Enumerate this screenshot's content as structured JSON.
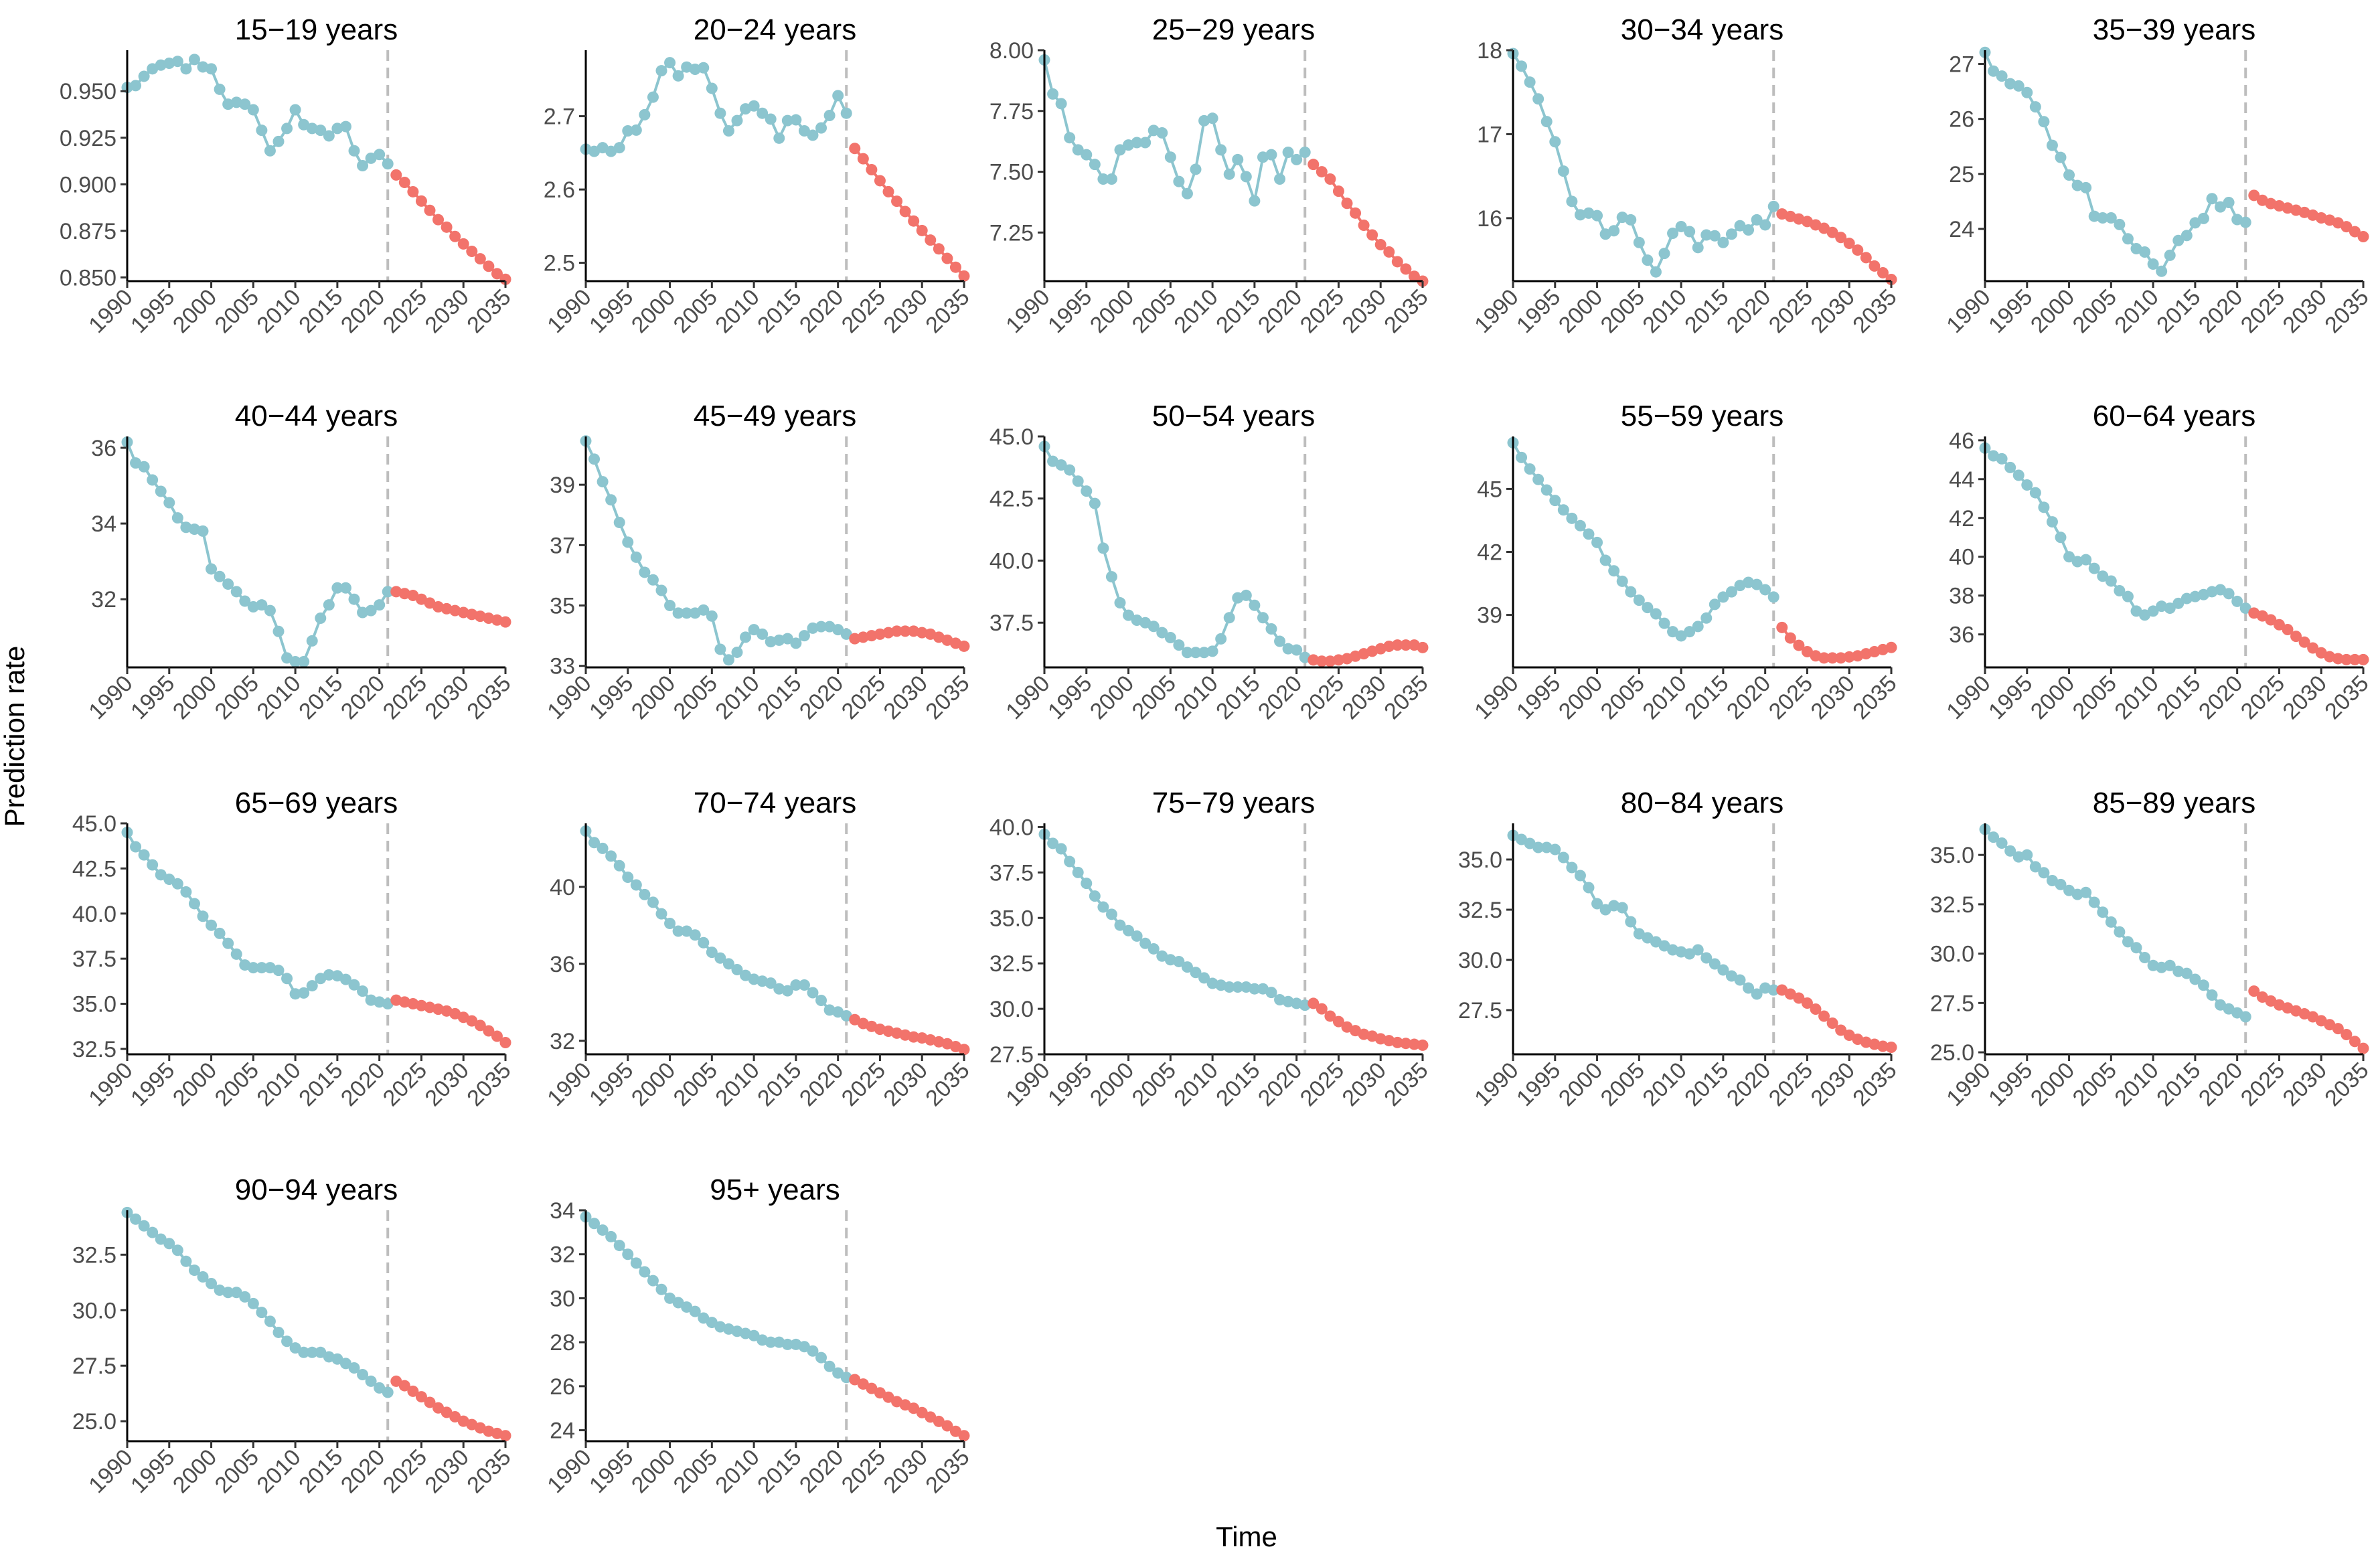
{
  "chart_data": {
    "type": "line",
    "title": "",
    "xlabel": "Time",
    "ylabel": "Prediction rate",
    "x_start": 1990,
    "x_end": 2035,
    "split_year": 2021,
    "xlim": [
      1990,
      2035
    ],
    "xticks": [
      1990,
      1995,
      2000,
      2005,
      2010,
      2015,
      2020,
      2025,
      2030,
      2035
    ],
    "colors": {
      "observed": "#8CC5CF",
      "predicted": "#F2736B",
      "reference_line": "#BDBDBD"
    },
    "legend": "none",
    "panels": [
      {
        "title": "15−19 years",
        "ylim": [
          0.848,
          0.972
        ],
        "yticks": [
          "0.850",
          "0.875",
          "0.900",
          "0.925",
          "0.950"
        ],
        "observed": [
          0.952,
          0.953,
          0.958,
          0.962,
          0.964,
          0.965,
          0.966,
          0.962,
          0.967,
          0.963,
          0.962,
          0.951,
          0.943,
          0.944,
          0.943,
          0.94,
          0.929,
          0.918,
          0.923,
          0.93,
          0.94,
          0.932,
          0.93,
          0.929,
          0.926,
          0.93,
          0.931,
          0.918,
          0.91,
          0.914,
          0.916,
          0.911
        ],
        "predicted": [
          0.905,
          0.901,
          0.896,
          0.891,
          0.886,
          0.881,
          0.877,
          0.872,
          0.868,
          0.864,
          0.86,
          0.856,
          0.852,
          0.849
        ]
      },
      {
        "title": "20−24 years",
        "ylim": [
          2.475,
          2.79
        ],
        "yticks": [
          "2.5",
          "2.6",
          "2.7"
        ],
        "observed": [
          2.655,
          2.652,
          2.657,
          2.652,
          2.657,
          2.68,
          2.681,
          2.702,
          2.726,
          2.762,
          2.773,
          2.755,
          2.767,
          2.764,
          2.766,
          2.738,
          2.704,
          2.68,
          2.694,
          2.71,
          2.714,
          2.704,
          2.696,
          2.67,
          2.694,
          2.695,
          2.68,
          2.674,
          2.684,
          2.701,
          2.728,
          2.704
        ],
        "predicted": [
          2.656,
          2.642,
          2.627,
          2.612,
          2.597,
          2.584,
          2.57,
          2.557,
          2.544,
          2.531,
          2.519,
          2.506,
          2.494,
          2.482
        ]
      },
      {
        "title": "25−29 years",
        "ylim": [
          7.05,
          8.0
        ],
        "yticks": [
          "7.25",
          "7.50",
          "7.75",
          "8.00"
        ],
        "observed": [
          7.96,
          7.82,
          7.78,
          7.64,
          7.59,
          7.57,
          7.53,
          7.47,
          7.47,
          7.59,
          7.61,
          7.62,
          7.62,
          7.67,
          7.66,
          7.56,
          7.46,
          7.41,
          7.51,
          7.71,
          7.72,
          7.59,
          7.49,
          7.55,
          7.48,
          7.38,
          7.56,
          7.57,
          7.47,
          7.58,
          7.55,
          7.58
        ],
        "predicted": [
          7.53,
          7.5,
          7.47,
          7.42,
          7.37,
          7.33,
          7.28,
          7.24,
          7.2,
          7.17,
          7.13,
          7.1,
          7.07,
          7.05
        ]
      },
      {
        "title": "30−34 years",
        "ylim": [
          15.25,
          18.0
        ],
        "yticks": [
          "16",
          "17",
          "18"
        ],
        "observed": [
          17.96,
          17.81,
          17.62,
          17.42,
          17.15,
          16.91,
          16.56,
          16.2,
          16.04,
          16.06,
          16.03,
          15.81,
          15.85,
          16.01,
          15.98,
          15.71,
          15.5,
          15.36,
          15.58,
          15.82,
          15.9,
          15.84,
          15.65,
          15.8,
          15.79,
          15.71,
          15.81,
          15.91,
          15.86,
          15.98,
          15.92,
          16.14
        ],
        "predicted": [
          16.05,
          16.02,
          15.99,
          15.96,
          15.92,
          15.88,
          15.83,
          15.77,
          15.7,
          15.62,
          15.53,
          15.43,
          15.35,
          15.27
        ]
      },
      {
        "title": "35−39 years",
        "ylim": [
          23.05,
          27.25
        ],
        "yticks": [
          "24",
          "25",
          "26",
          "27"
        ],
        "observed": [
          27.21,
          26.87,
          26.78,
          26.64,
          26.6,
          26.48,
          26.22,
          25.95,
          25.52,
          25.3,
          24.98,
          24.79,
          24.75,
          24.23,
          24.2,
          24.2,
          24.08,
          23.82,
          23.64,
          23.58,
          23.36,
          23.23,
          23.52,
          23.79,
          23.88,
          24.11,
          24.19,
          24.55,
          24.4,
          24.48,
          24.17,
          24.12
        ],
        "predicted": [
          24.61,
          24.52,
          24.46,
          24.42,
          24.38,
          24.34,
          24.3,
          24.25,
          24.2,
          24.16,
          24.11,
          24.04,
          23.95,
          23.86
        ]
      },
      {
        "title": "40−44 years",
        "ylim": [
          30.2,
          36.3
        ],
        "yticks": [
          "32",
          "34",
          "36"
        ],
        "observed": [
          36.15,
          35.6,
          35.5,
          35.15,
          34.85,
          34.55,
          34.15,
          33.9,
          33.85,
          33.8,
          32.8,
          32.6,
          32.4,
          32.2,
          31.95,
          31.8,
          31.85,
          31.7,
          31.15,
          30.45,
          30.35,
          30.35,
          30.9,
          31.5,
          31.85,
          32.3,
          32.3,
          32.0,
          31.65,
          31.7,
          31.85,
          32.2
        ],
        "predicted": [
          32.2,
          32.15,
          32.1,
          32.0,
          31.9,
          31.8,
          31.75,
          31.7,
          31.65,
          31.6,
          31.55,
          31.5,
          31.45,
          31.4
        ]
      },
      {
        "title": "45−49 years",
        "ylim": [
          32.95,
          40.6
        ],
        "yticks": [
          "33",
          "35",
          "37",
          "39"
        ],
        "observed": [
          40.45,
          39.85,
          39.1,
          38.5,
          37.75,
          37.1,
          36.6,
          36.1,
          35.85,
          35.5,
          35.0,
          34.75,
          34.75,
          34.75,
          34.85,
          34.65,
          33.55,
          33.2,
          33.45,
          33.95,
          34.2,
          34.05,
          33.8,
          33.85,
          33.9,
          33.75,
          34.0,
          34.25,
          34.3,
          34.3,
          34.2,
          34.05
        ],
        "predicted": [
          33.9,
          33.95,
          34.0,
          34.05,
          34.1,
          34.15,
          34.15,
          34.15,
          34.1,
          34.05,
          33.95,
          33.85,
          33.75,
          33.65
        ]
      },
      {
        "title": "50−54 years",
        "ylim": [
          35.7,
          45.0
        ],
        "yticks": [
          "37.5",
          "40.0",
          "42.5",
          "45.0"
        ],
        "observed": [
          44.6,
          44.0,
          43.85,
          43.65,
          43.2,
          42.8,
          42.3,
          40.5,
          39.35,
          38.3,
          37.8,
          37.6,
          37.5,
          37.35,
          37.1,
          36.9,
          36.6,
          36.3,
          36.3,
          36.3,
          36.35,
          36.85,
          37.7,
          38.5,
          38.6,
          38.2,
          37.7,
          37.25,
          36.75,
          36.45,
          36.4,
          36.1
        ],
        "predicted": [
          36.0,
          35.95,
          35.95,
          36.0,
          36.05,
          36.15,
          36.25,
          36.35,
          36.45,
          36.55,
          36.6,
          36.6,
          36.6,
          36.5
        ]
      },
      {
        "title": "55−59 years",
        "ylim": [
          36.5,
          47.5
        ],
        "yticks": [
          "39",
          "42",
          "45"
        ],
        "observed": [
          47.2,
          46.5,
          45.95,
          45.45,
          44.95,
          44.45,
          44.0,
          43.6,
          43.25,
          42.85,
          42.45,
          41.6,
          41.1,
          40.6,
          40.1,
          39.7,
          39.35,
          39.05,
          38.6,
          38.2,
          38.0,
          38.2,
          38.45,
          38.85,
          39.5,
          39.85,
          40.1,
          40.4,
          40.55,
          40.45,
          40.2,
          39.85
        ],
        "predicted": [
          38.4,
          37.9,
          37.55,
          37.25,
          37.05,
          36.95,
          36.95,
          36.95,
          37.0,
          37.05,
          37.15,
          37.25,
          37.35,
          37.45
        ]
      },
      {
        "title": "60−64 years",
        "ylim": [
          34.3,
          46.2
        ],
        "yticks": [
          "36",
          "38",
          "40",
          "42",
          "44",
          "46"
        ],
        "observed": [
          45.6,
          45.2,
          45.05,
          44.6,
          44.2,
          43.7,
          43.3,
          42.55,
          41.8,
          41.0,
          40.0,
          39.75,
          39.85,
          39.4,
          39.0,
          38.75,
          38.25,
          37.95,
          37.2,
          37.0,
          37.2,
          37.45,
          37.35,
          37.6,
          37.85,
          37.95,
          38.05,
          38.2,
          38.3,
          38.1,
          37.7,
          37.35
        ],
        "predicted": [
          37.1,
          36.95,
          36.75,
          36.5,
          36.25,
          35.9,
          35.6,
          35.3,
          35.05,
          34.85,
          34.75,
          34.7,
          34.7,
          34.7
        ]
      },
      {
        "title": "65−69 years",
        "ylim": [
          32.2,
          45.0
        ],
        "yticks": [
          "32.5",
          "35.0",
          "37.5",
          "40.0",
          "42.5",
          "45.0"
        ],
        "observed": [
          44.5,
          43.7,
          43.25,
          42.7,
          42.15,
          41.9,
          41.65,
          41.2,
          40.55,
          39.85,
          39.35,
          38.9,
          38.35,
          37.75,
          37.15,
          37.0,
          37.0,
          37.0,
          36.85,
          36.4,
          35.55,
          35.6,
          36.0,
          36.4,
          36.6,
          36.55,
          36.35,
          36.05,
          35.7,
          35.2,
          35.1,
          35.0
        ],
        "predicted": [
          35.2,
          35.1,
          35.0,
          34.9,
          34.8,
          34.7,
          34.6,
          34.45,
          34.25,
          34.05,
          33.8,
          33.5,
          33.2,
          32.85
        ]
      },
      {
        "title": "70−74 years",
        "ylim": [
          31.3,
          43.3
        ],
        "yticks": [
          "32",
          "36",
          "40"
        ],
        "observed": [
          42.9,
          42.3,
          42.0,
          41.6,
          41.1,
          40.5,
          40.1,
          39.6,
          39.2,
          38.6,
          38.1,
          37.7,
          37.7,
          37.5,
          37.1,
          36.6,
          36.3,
          36.0,
          35.7,
          35.4,
          35.2,
          35.1,
          35.0,
          34.7,
          34.6,
          34.9,
          34.9,
          34.5,
          34.1,
          33.6,
          33.5,
          33.3
        ],
        "predicted": [
          33.1,
          32.9,
          32.75,
          32.6,
          32.5,
          32.4,
          32.3,
          32.2,
          32.15,
          32.05,
          31.95,
          31.85,
          31.7,
          31.55
        ]
      },
      {
        "title": "75−79 years",
        "ylim": [
          27.5,
          40.2
        ],
        "yticks": [
          "27.5",
          "30.0",
          "32.5",
          "35.0",
          "37.5",
          "40.0"
        ],
        "observed": [
          39.6,
          39.1,
          38.8,
          38.1,
          37.5,
          36.9,
          36.2,
          35.6,
          35.2,
          34.6,
          34.3,
          34.0,
          33.6,
          33.3,
          32.9,
          32.7,
          32.6,
          32.3,
          32.0,
          31.7,
          31.4,
          31.3,
          31.2,
          31.2,
          31.2,
          31.1,
          31.1,
          30.9,
          30.5,
          30.4,
          30.3,
          30.2
        ],
        "predicted": [
          30.3,
          30.0,
          29.6,
          29.3,
          29.0,
          28.8,
          28.6,
          28.5,
          28.35,
          28.25,
          28.15,
          28.1,
          28.05,
          28.0
        ]
      },
      {
        "title": "80−84 years",
        "ylim": [
          25.3,
          36.8
        ],
        "yticks": [
          "27.5",
          "30.0",
          "32.5",
          "35.0"
        ],
        "observed": [
          36.2,
          36.0,
          35.8,
          35.6,
          35.6,
          35.5,
          35.1,
          34.6,
          34.2,
          33.6,
          32.8,
          32.5,
          32.7,
          32.6,
          31.9,
          31.3,
          31.1,
          30.9,
          30.7,
          30.5,
          30.4,
          30.3,
          30.5,
          30.1,
          29.8,
          29.5,
          29.2,
          29.0,
          28.6,
          28.3,
          28.6,
          28.5
        ],
        "predicted": [
          28.5,
          28.3,
          28.1,
          27.85,
          27.55,
          27.2,
          26.85,
          26.5,
          26.25,
          26.05,
          25.9,
          25.8,
          25.7,
          25.65
        ]
      },
      {
        "title": "85−89 years",
        "ylim": [
          24.9,
          36.6
        ],
        "yticks": [
          "25.0",
          "27.5",
          "30.0",
          "32.5",
          "35.0"
        ],
        "observed": [
          36.3,
          35.9,
          35.6,
          35.2,
          34.9,
          35.0,
          34.4,
          34.1,
          33.7,
          33.5,
          33.2,
          33.0,
          33.1,
          32.6,
          32.1,
          31.6,
          31.1,
          30.6,
          30.3,
          29.8,
          29.4,
          29.3,
          29.4,
          29.1,
          29.0,
          28.7,
          28.4,
          27.9,
          27.4,
          27.2,
          27.0,
          26.8
        ],
        "predicted": [
          28.1,
          27.8,
          27.6,
          27.4,
          27.25,
          27.1,
          26.95,
          26.8,
          26.6,
          26.4,
          26.2,
          25.9,
          25.55,
          25.2
        ]
      },
      {
        "title": "90−94 years",
        "ylim": [
          24.1,
          34.5
        ],
        "yticks": [
          "25.0",
          "27.5",
          "30.0",
          "32.5"
        ],
        "observed": [
          34.4,
          34.1,
          33.8,
          33.5,
          33.2,
          33.0,
          32.7,
          32.2,
          31.8,
          31.5,
          31.2,
          30.9,
          30.8,
          30.8,
          30.6,
          30.3,
          29.9,
          29.5,
          29.0,
          28.6,
          28.3,
          28.1,
          28.1,
          28.1,
          27.9,
          27.8,
          27.6,
          27.4,
          27.1,
          26.8,
          26.5,
          26.3
        ],
        "predicted": [
          26.8,
          26.6,
          26.35,
          26.1,
          25.85,
          25.6,
          25.4,
          25.2,
          25.0,
          24.85,
          24.7,
          24.55,
          24.45,
          24.35
        ]
      },
      {
        "title": "95+ years",
        "ylim": [
          23.5,
          34.0
        ],
        "yticks": [
          "24",
          "26",
          "28",
          "30",
          "32",
          "34"
        ],
        "observed": [
          33.7,
          33.4,
          33.1,
          32.8,
          32.4,
          32.0,
          31.6,
          31.2,
          30.8,
          30.4,
          30.0,
          29.8,
          29.6,
          29.4,
          29.1,
          28.9,
          28.7,
          28.6,
          28.5,
          28.4,
          28.3,
          28.1,
          28.0,
          28.0,
          27.9,
          27.9,
          27.8,
          27.6,
          27.3,
          26.9,
          26.6,
          26.4
        ],
        "predicted": [
          26.3,
          26.1,
          25.9,
          25.7,
          25.5,
          25.3,
          25.15,
          25.0,
          24.8,
          24.6,
          24.4,
          24.2,
          23.95,
          23.75
        ]
      }
    ]
  }
}
